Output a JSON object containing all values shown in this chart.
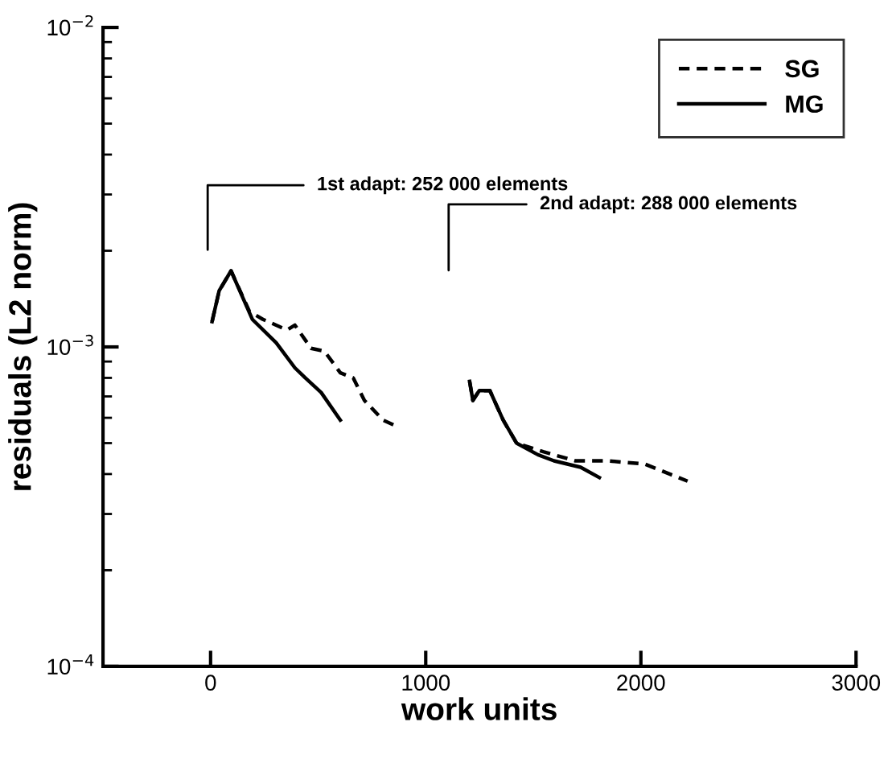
{
  "chart_data": {
    "type": "line",
    "xlabel": "work units",
    "ylabel": "residuals (L2 norm)",
    "log": "y",
    "xlim": [
      -500,
      3000
    ],
    "xticks": [
      0,
      1000,
      2000,
      3000
    ],
    "ylim": [
      0.0001,
      0.01
    ],
    "yticks": [
      {
        "value": 0.0001,
        "label": "10$^{−4}$"
      },
      {
        "value": 0.001,
        "label": "10$^{−3}$"
      },
      {
        "value": 0.01,
        "label": "10$^{−2}$"
      }
    ],
    "grid": false,
    "legend": "top right",
    "marker": "none",
    "series": [
      {
        "name": "SG",
        "color": "#000000",
        "line_style": "dashed",
        "x": [
          7,
          40,
          95,
          181,
          243,
          355,
          392,
          467,
          529,
          603,
          663,
          715,
          802,
          876
        ],
        "values": [
          0.0012,
          0.0015,
          0.00173,
          0.00129,
          0.00122,
          0.00113,
          0.00117,
          0.00099,
          0.00097,
          0.00083,
          0.0008,
          0.00068,
          0.00059,
          0.00056
        ]
      },
      {
        "name": "MG",
        "color": "#000000",
        "line_style": "solid",
        "x": [
          7,
          40,
          95,
          194,
          305,
          392,
          440,
          514,
          603
        ],
        "values": [
          0.0012,
          0.0015,
          0.00173,
          0.00122,
          0.00103,
          0.00086,
          0.0008,
          0.00072,
          0.00059
        ]
      },
      {
        "color": "#000000",
        "line_style": "dashed",
        "x": [
          1204,
          1219,
          1249,
          1298,
          1360,
          1422,
          1546,
          1695,
          1844,
          2018,
          2217
        ],
        "values": [
          0.00078,
          0.00068,
          0.00073,
          0.00073,
          0.00059,
          0.0005,
          0.00047,
          0.00044,
          0.00044,
          0.00043,
          0.00038
        ]
      },
      {
        "color": "#000000",
        "line_style": "solid",
        "x": [
          1204,
          1219,
          1249,
          1298,
          1360,
          1422,
          1521,
          1596,
          1720,
          1807
        ],
        "values": [
          0.00078,
          0.00068,
          0.00073,
          0.00073,
          0.00059,
          0.0005,
          0.00046,
          0.00044,
          0.00042,
          0.00039
        ]
      }
    ],
    "annotations": [
      "1st adapt: 252 000 elements",
      "2nd adapt: 288 000 elements"
    ]
  }
}
